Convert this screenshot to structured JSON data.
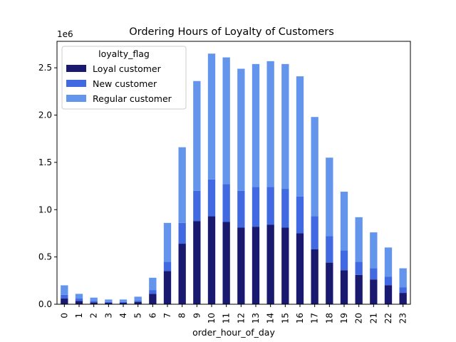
{
  "chart_data": {
    "type": "bar",
    "stacked": true,
    "title": "Ordering Hours of Loyalty of Customers",
    "xlabel": "order_hour_of_day",
    "ylabel": "",
    "y_offset_label": "1e6",
    "ylim": [
      0,
      2.78
    ],
    "yticks": [
      "0.0",
      "0.5",
      "1.0",
      "1.5",
      "2.0",
      "2.5"
    ],
    "categories": [
      "0",
      "1",
      "2",
      "3",
      "4",
      "5",
      "6",
      "7",
      "8",
      "9",
      "10",
      "11",
      "12",
      "13",
      "14",
      "15",
      "16",
      "17",
      "18",
      "19",
      "20",
      "21",
      "22",
      "23"
    ],
    "legend_title": "loyalty_flag",
    "legend_position": "upper-left",
    "grid": false,
    "series": [
      {
        "name": "Loyal customer",
        "color": "#191970",
        "values": [
          0.06,
          0.035,
          0.02,
          0.015,
          0.015,
          0.025,
          0.11,
          0.35,
          0.64,
          0.88,
          0.93,
          0.87,
          0.81,
          0.82,
          0.84,
          0.81,
          0.75,
          0.58,
          0.44,
          0.36,
          0.31,
          0.26,
          0.2,
          0.12
        ]
      },
      {
        "name": "New customer",
        "color": "#4169E1",
        "values": [
          0.04,
          0.025,
          0.015,
          0.01,
          0.01,
          0.015,
          0.04,
          0.1,
          0.22,
          0.32,
          0.39,
          0.4,
          0.39,
          0.42,
          0.4,
          0.41,
          0.39,
          0.35,
          0.28,
          0.21,
          0.14,
          0.12,
          0.09,
          0.06
        ]
      },
      {
        "name": "Regular customer",
        "color": "#6495ED",
        "values": [
          0.1,
          0.05,
          0.035,
          0.025,
          0.025,
          0.04,
          0.13,
          0.41,
          0.8,
          1.16,
          1.33,
          1.34,
          1.29,
          1.3,
          1.33,
          1.32,
          1.27,
          1.05,
          0.83,
          0.62,
          0.47,
          0.38,
          0.31,
          0.2
        ]
      }
    ]
  }
}
